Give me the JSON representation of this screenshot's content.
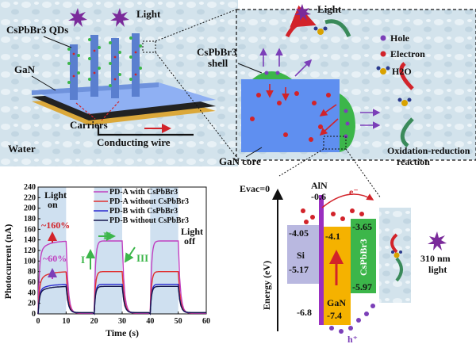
{
  "panel_a": {
    "light": "Light",
    "qds": "CsPbBr3 QDs",
    "gan": "GaN",
    "carriers": "Carriers",
    "wire": "Conducting wire",
    "water": "Water"
  },
  "panel_b": {
    "light": "Light",
    "shell_line1": "CsPbBr3",
    "shell_line2": "shell",
    "core": "GaN core",
    "legend": [
      "Hole",
      "Electron",
      "H2O"
    ],
    "redox_line1": "Oxidation-reduction",
    "redox_line2": "reaction"
  },
  "chart_data": {
    "type": "line",
    "xlabel": "Time (s)",
    "ylabel": "Photocurrent (nA)",
    "xlim": [
      0,
      60
    ],
    "ylim": [
      0,
      240
    ],
    "xticks": [
      "0",
      "10",
      "20",
      "30",
      "40",
      "50",
      "60"
    ],
    "yticks": [
      "0",
      "20",
      "40",
      "60",
      "80",
      "100",
      "120",
      "140",
      "160",
      "180",
      "200",
      "220",
      "240"
    ],
    "light_on_intervals": [
      [
        0,
        10
      ],
      [
        20,
        30
      ],
      [
        40,
        50
      ]
    ],
    "series": [
      {
        "name": "PD-A with CsPbBr3",
        "color": "#c040c0",
        "on": 138,
        "rise_initial": 115
      },
      {
        "name": "PD-A without CsPbBr3",
        "color": "#e03030",
        "on": 80,
        "rise_initial": 62
      },
      {
        "name": "PD-B with CsPbBr3",
        "color": "#2b2bd0",
        "on": 56,
        "rise_initial": 44
      },
      {
        "name": "PD-B without CsPbBr3",
        "color": "#15154d",
        "on": 52,
        "rise_initial": 40
      }
    ],
    "annotations": {
      "light_on_1": "Light",
      "light_on_2": "on",
      "light_off_1": "Light",
      "light_off_2": "off",
      "pct160": "~160%",
      "pct60": "~60%",
      "stage1": "I",
      "stage2": "II",
      "stage3": "III"
    }
  },
  "panel_d": {
    "evac": "Evac=0",
    "aln": "AlN",
    "aln_val": "-0.6",
    "e": "e⁻",
    "h": "h⁺",
    "si": "Si",
    "si_cb": "-4.05",
    "si_vb": "-5.17",
    "gan": "GaN",
    "gan_cb": "-4.1",
    "gan_vb": "-7.4",
    "cspbbr3": "CsPbBr3",
    "cs_cb": "-3.65",
    "cs_vb": "-5.97",
    "aln_vb": "-6.8",
    "energy_axis": "Energy (eV)",
    "light_nm1": "310 nm",
    "light_nm2": "light"
  },
  "colors": {
    "water": "#cfe0ea",
    "gan_blue": "#5f8ff0",
    "cspbbr3_green": "#3cb64a",
    "gan_orange": "#f5b200",
    "si_lavender": "#b9b8e0",
    "aln_purple": "#9a2fc0",
    "electron": "#d2232a",
    "hole": "#7b3fb8"
  }
}
